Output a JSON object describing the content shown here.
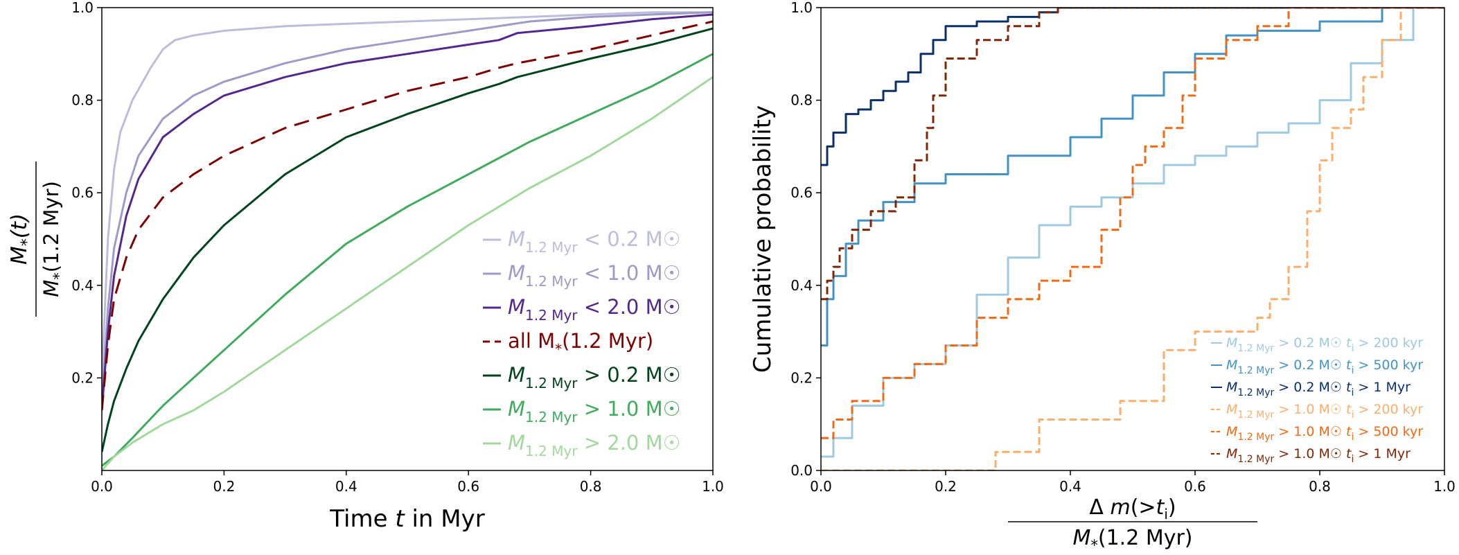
{
  "chart_data": [
    {
      "type": "line",
      "title": "",
      "xlabel": "Time t in Myr",
      "ylabel_numerator": "M*(t)",
      "ylabel_denominator": "M*(1.2 Myr)",
      "xlim": [
        0,
        1
      ],
      "ylim": [
        0,
        1
      ],
      "xticks": [
        "0.0",
        "0.2",
        "0.4",
        "0.6",
        "0.8",
        "1.0"
      ],
      "yticks": [
        "0.2",
        "0.4",
        "0.6",
        "0.8",
        "1.0"
      ],
      "grid": false,
      "legend_position": "lower-right",
      "series": [
        {
          "name": "M1.2 Myr < 0.2 M☉",
          "label_parts": [
            "M",
            "1.2 Myr",
            " < 0.2 M☉"
          ],
          "color": "#bcbddc",
          "dash": "solid",
          "x": [
            0,
            0.01,
            0.02,
            0.03,
            0.05,
            0.08,
            0.1,
            0.12,
            0.15,
            0.2,
            0.3,
            0.5,
            0.7,
            0.9,
            1.0
          ],
          "y": [
            0.2,
            0.5,
            0.65,
            0.73,
            0.8,
            0.87,
            0.91,
            0.93,
            0.94,
            0.95,
            0.96,
            0.97,
            0.98,
            0.99,
            0.99
          ]
        },
        {
          "name": "M1.2 Myr < 1.0 M☉",
          "label_parts": [
            "M",
            "1.2 Myr",
            " < 1.0 M☉"
          ],
          "color": "#9e9ac8",
          "dash": "solid",
          "x": [
            0,
            0.01,
            0.02,
            0.04,
            0.06,
            0.1,
            0.15,
            0.2,
            0.3,
            0.4,
            0.5,
            0.6,
            0.7,
            0.8,
            0.9,
            1.0
          ],
          "y": [
            0.15,
            0.35,
            0.48,
            0.6,
            0.68,
            0.76,
            0.81,
            0.84,
            0.88,
            0.91,
            0.93,
            0.95,
            0.97,
            0.98,
            0.985,
            0.99
          ]
        },
        {
          "name": "M1.2 Myr < 2.0 M☉",
          "label_parts": [
            "M",
            "1.2 Myr",
            " < 2.0 M☉"
          ],
          "color": "#54278f",
          "dash": "solid",
          "x": [
            0,
            0.01,
            0.02,
            0.04,
            0.06,
            0.1,
            0.15,
            0.2,
            0.3,
            0.4,
            0.5,
            0.6,
            0.65,
            0.68,
            0.8,
            0.9,
            1.0
          ],
          "y": [
            0.13,
            0.3,
            0.42,
            0.55,
            0.63,
            0.72,
            0.77,
            0.81,
            0.85,
            0.88,
            0.9,
            0.92,
            0.93,
            0.945,
            0.96,
            0.975,
            0.985
          ]
        },
        {
          "name": "all M*(1.2 Myr)",
          "label_parts": [
            "all M",
            "*",
            "(1.2 Myr)"
          ],
          "color": "#7f0000",
          "dash": "dashed",
          "x": [
            0,
            0.01,
            0.02,
            0.04,
            0.06,
            0.1,
            0.15,
            0.2,
            0.3,
            0.4,
            0.5,
            0.6,
            0.65,
            0.68,
            0.8,
            0.9,
            1.0
          ],
          "y": [
            0.13,
            0.27,
            0.37,
            0.46,
            0.52,
            0.59,
            0.64,
            0.68,
            0.74,
            0.78,
            0.82,
            0.85,
            0.87,
            0.88,
            0.91,
            0.94,
            0.97
          ]
        },
        {
          "name": "M1.2 Myr > 0.2 M☉",
          "label_parts": [
            "M",
            "1.2 Myr",
            " > 0.2 M☉"
          ],
          "color": "#00441b",
          "dash": "solid",
          "x": [
            0,
            0.01,
            0.02,
            0.04,
            0.06,
            0.1,
            0.15,
            0.2,
            0.3,
            0.4,
            0.5,
            0.6,
            0.65,
            0.68,
            0.8,
            0.9,
            1.0
          ],
          "y": [
            0.04,
            0.1,
            0.15,
            0.22,
            0.28,
            0.37,
            0.46,
            0.53,
            0.64,
            0.72,
            0.77,
            0.815,
            0.835,
            0.85,
            0.89,
            0.92,
            0.955
          ]
        },
        {
          "name": "M1.2 Myr > 1.0 M☉",
          "label_parts": [
            "M",
            "1.2 Myr",
            " > 1.0 M☉"
          ],
          "color": "#41ab5d",
          "dash": "solid",
          "x": [
            0,
            0.02,
            0.05,
            0.1,
            0.15,
            0.2,
            0.3,
            0.4,
            0.5,
            0.6,
            0.7,
            0.8,
            0.9,
            1.0
          ],
          "y": [
            0.01,
            0.03,
            0.07,
            0.14,
            0.2,
            0.26,
            0.38,
            0.49,
            0.57,
            0.64,
            0.71,
            0.77,
            0.83,
            0.9
          ]
        },
        {
          "name": "M1.2 Myr > 2.0 M☉",
          "label_parts": [
            "M",
            "1.2 Myr",
            " > 2.0 M☉"
          ],
          "color": "#a1d99b",
          "dash": "solid",
          "x": [
            0,
            0.02,
            0.05,
            0.1,
            0.15,
            0.2,
            0.3,
            0.4,
            0.5,
            0.6,
            0.7,
            0.8,
            0.9,
            1.0
          ],
          "y": [
            0.0,
            0.03,
            0.06,
            0.1,
            0.13,
            0.17,
            0.26,
            0.35,
            0.44,
            0.53,
            0.61,
            0.68,
            0.76,
            0.85
          ]
        }
      ]
    },
    {
      "type": "line",
      "title": "",
      "xlabel_numerator": "Δm(>ti)",
      "xlabel_denominator": "M*(1.2 Myr)",
      "ylabel": "Cumulative probability",
      "xlim": [
        0,
        1
      ],
      "ylim": [
        0,
        1
      ],
      "xticks": [
        "0.0",
        "0.2",
        "0.4",
        "0.6",
        "0.8",
        "1.0"
      ],
      "yticks": [
        "0.0",
        "0.2",
        "0.4",
        "0.6",
        "0.8",
        "1.0"
      ],
      "grid": false,
      "legend_position": "lower-right",
      "series": [
        {
          "name": "M1.2 Myr > 0.2 M☉ ti > 200 kyr",
          "label_parts": [
            "M",
            "1.2 Myr",
            " > 0.2 M☉  t",
            "i",
            " > 200 kyr"
          ],
          "color": "#9ecae1",
          "dash": "solid",
          "x": [
            0.0,
            0.02,
            0.05,
            0.1,
            0.15,
            0.2,
            0.25,
            0.3,
            0.35,
            0.4,
            0.45,
            0.5,
            0.55,
            0.6,
            0.65,
            0.7,
            0.75,
            0.8,
            0.85,
            0.9,
            0.95,
            1.0
          ],
          "y": [
            0.03,
            0.07,
            0.14,
            0.2,
            0.23,
            0.27,
            0.38,
            0.46,
            0.53,
            0.57,
            0.59,
            0.62,
            0.66,
            0.68,
            0.7,
            0.73,
            0.75,
            0.8,
            0.88,
            0.93,
            1.0,
            1.0
          ]
        },
        {
          "name": "M1.2 Myr > 0.2 M☉ ti > 500 kyr",
          "label_parts": [
            "M",
            "1.2 Myr",
            " > 0.2 M☉  t",
            "i",
            " > 500 kyr"
          ],
          "color": "#4292c6",
          "dash": "solid",
          "x": [
            0.0,
            0.01,
            0.02,
            0.04,
            0.06,
            0.1,
            0.15,
            0.2,
            0.3,
            0.4,
            0.45,
            0.5,
            0.55,
            0.6,
            0.65,
            0.7,
            0.8,
            0.9,
            1.0
          ],
          "y": [
            0.27,
            0.37,
            0.42,
            0.49,
            0.54,
            0.58,
            0.62,
            0.64,
            0.68,
            0.72,
            0.76,
            0.81,
            0.86,
            0.9,
            0.94,
            0.95,
            0.97,
            1.0,
            1.0
          ]
        },
        {
          "name": "M1.2 Myr > 0.2 M☉ ti > 1 Myr",
          "label_parts": [
            "M",
            "1.2 Myr",
            " > 0.2 M☉  t",
            "i",
            " > 1 Myr"
          ],
          "color": "#08306b",
          "dash": "solid",
          "x": [
            0.0,
            0.01,
            0.02,
            0.04,
            0.06,
            0.08,
            0.1,
            0.12,
            0.14,
            0.16,
            0.18,
            0.2,
            0.25,
            0.3,
            0.35,
            0.38,
            1.0
          ],
          "y": [
            0.66,
            0.7,
            0.73,
            0.77,
            0.78,
            0.8,
            0.82,
            0.84,
            0.86,
            0.9,
            0.93,
            0.96,
            0.97,
            0.98,
            0.99,
            1.0,
            1.0
          ]
        },
        {
          "name": "M1.2 Myr > 1.0 M☉ ti > 200 kyr",
          "label_parts": [
            "M",
            "1.2 Myr",
            " > 1.0 M☉  t",
            "i",
            " > 200 kyr"
          ],
          "color": "#fdae6b",
          "dash": "dashed",
          "x": [
            0.0,
            0.27,
            0.28,
            0.35,
            0.45,
            0.48,
            0.55,
            0.6,
            0.65,
            0.7,
            0.72,
            0.75,
            0.78,
            0.8,
            0.82,
            0.85,
            0.87,
            0.9,
            0.93,
            1.0
          ],
          "y": [
            0.0,
            0.0,
            0.04,
            0.11,
            0.11,
            0.15,
            0.26,
            0.3,
            0.3,
            0.33,
            0.37,
            0.44,
            0.56,
            0.67,
            0.74,
            0.78,
            0.85,
            0.93,
            1.0,
            1.0
          ]
        },
        {
          "name": "M1.2 Myr > 1.0 M☉ ti > 500 kyr",
          "label_parts": [
            "M",
            "1.2 Myr",
            " > 1.0 M☉  t",
            "i",
            " > 500 kyr"
          ],
          "color": "#f16913",
          "dash": "dashed",
          "x": [
            0.0,
            0.02,
            0.05,
            0.1,
            0.15,
            0.2,
            0.25,
            0.3,
            0.35,
            0.4,
            0.45,
            0.48,
            0.5,
            0.52,
            0.55,
            0.58,
            0.6,
            0.65,
            0.7,
            0.75,
            0.8,
            0.85,
            0.9,
            1.0
          ],
          "y": [
            0.07,
            0.11,
            0.15,
            0.2,
            0.23,
            0.27,
            0.33,
            0.37,
            0.41,
            0.44,
            0.52,
            0.59,
            0.66,
            0.7,
            0.74,
            0.81,
            0.89,
            0.93,
            0.96,
            1.0,
            1.0,
            1.0,
            1.0,
            1.0
          ]
        },
        {
          "name": "M1.2 Myr > 1.0 M☉ ti > 1 Myr",
          "label_parts": [
            "M",
            "1.2 Myr",
            " > 1.0 M☉  t",
            "i",
            " > 1 Myr"
          ],
          "color": "#7f2704",
          "dash": "dashed",
          "x": [
            0.0,
            0.01,
            0.02,
            0.03,
            0.05,
            0.08,
            0.12,
            0.15,
            0.17,
            0.18,
            0.2,
            0.25,
            0.3,
            0.33,
            0.35,
            0.38,
            1.0
          ],
          "y": [
            0.37,
            0.41,
            0.44,
            0.48,
            0.52,
            0.56,
            0.59,
            0.67,
            0.74,
            0.81,
            0.89,
            0.93,
            0.96,
            0.96,
            0.99,
            1.0,
            1.0
          ]
        }
      ]
    }
  ]
}
